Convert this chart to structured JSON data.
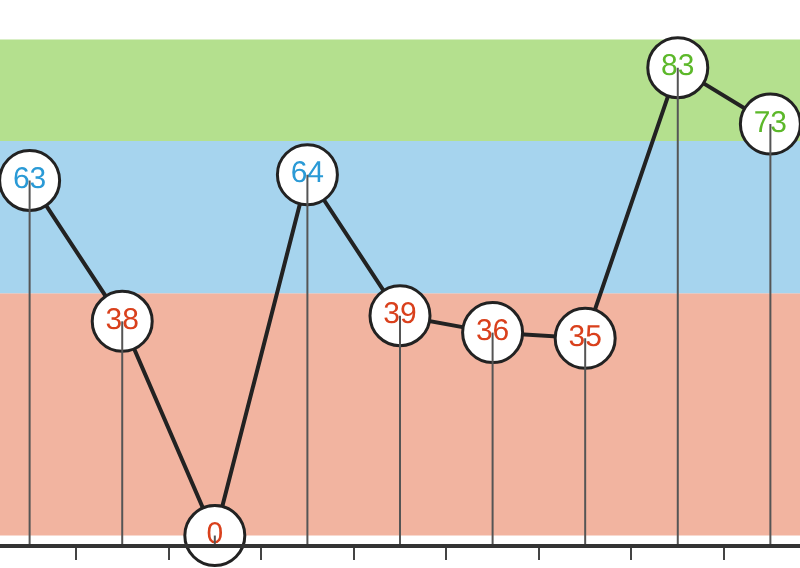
{
  "chart_data": {
    "type": "line",
    "categories": [
      null,
      null,
      null,
      null,
      null,
      null,
      null,
      null,
      null
    ],
    "values": [
      63,
      38,
      0,
      64,
      39,
      36,
      35,
      83,
      73
    ],
    "colors": [
      "#2a9ad6",
      "#d9401c",
      "#d9401c",
      "#2a9ad6",
      "#d9401c",
      "#d9401c",
      "#d9401c",
      "#5cb82a",
      "#5cb82a"
    ],
    "color": "#222222",
    "data_labels": true,
    "marker": "circle",
    "ylim": [
      -1.5,
      95
    ],
    "bands": [
      {
        "axis": "y",
        "from": 0,
        "to": 43,
        "color": "#f2b4a0"
      },
      {
        "axis": "y",
        "from": 43,
        "to": 70,
        "color": "#a6d4ee"
      },
      {
        "axis": "y",
        "from": 70,
        "to": 88,
        "color": "#b4e08e"
      }
    ]
  }
}
